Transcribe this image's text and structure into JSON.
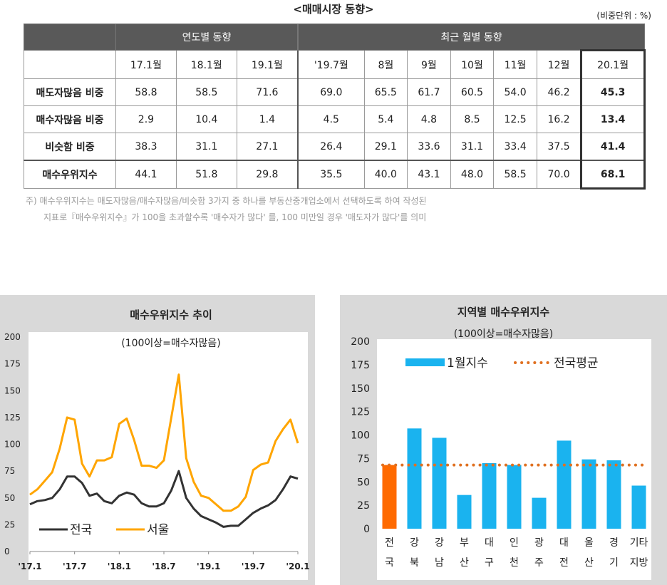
{
  "title": "<매매시장 동향>",
  "unit": "(비중단위 : %)",
  "table": {
    "group_headers": [
      "연도별 동향",
      "최근 월별 동향"
    ],
    "columns": [
      "17.1월",
      "18.1월",
      "19.1월",
      "'19.7월",
      "8월",
      "9월",
      "10월",
      "11월",
      "12월",
      "20.1월"
    ],
    "rows": [
      {
        "label": "매도자많음 비중",
        "values": [
          "58.8",
          "58.5",
          "71.6",
          "69.0",
          "65.5",
          "61.7",
          "60.5",
          "54.0",
          "46.2",
          "45.3"
        ]
      },
      {
        "label": "매수자많음 비중",
        "values": [
          "2.9",
          "10.4",
          "1.4",
          "4.5",
          "5.4",
          "4.8",
          "8.5",
          "12.5",
          "16.2",
          "13.4"
        ]
      },
      {
        "label": "비슷함 비중",
        "values": [
          "38.3",
          "31.1",
          "27.1",
          "26.4",
          "29.1",
          "33.6",
          "31.1",
          "33.4",
          "37.5",
          "41.4"
        ]
      },
      {
        "label": "매수우위지수",
        "values": [
          "44.1",
          "51.8",
          "29.8",
          "35.5",
          "40.0",
          "43.1",
          "48.0",
          "58.5",
          "70.0",
          "68.1"
        ]
      }
    ]
  },
  "note": {
    "line1": "주)  매수우위지수는 매도자많음/매수자많음/비슷함 3가지 중 하나를 부동산중개업소에서 선택하도록 하여 작성된",
    "line2": "지표로『매수우위지수』가 100을 초과할수록 '매수자가 많다' 를, 100 미만일 경우 '매도자가 많다'를 의미"
  },
  "chart_data": [
    {
      "type": "line",
      "title": "매수우위지수 추이",
      "subtitle": "(100이상=매수자많음)",
      "x_ticks": [
        "'17.1",
        "'17.7",
        "'18.1",
        "'18.7",
        "'19.1",
        "'19.7",
        "'20.1"
      ],
      "ylim": [
        0,
        200
      ],
      "y_ticks": [
        0,
        25,
        50,
        75,
        100,
        125,
        150,
        175,
        200
      ],
      "grid": false,
      "legend": "bottom-left",
      "series": [
        {
          "name": "전국",
          "color": "#333333",
          "values": [
            44,
            47,
            48,
            50,
            58,
            70,
            70,
            64,
            52,
            54,
            47,
            45,
            52,
            55,
            53,
            45,
            42,
            42,
            45,
            57,
            75,
            50,
            40,
            33,
            30,
            27,
            23,
            24,
            24,
            30,
            36,
            40,
            43,
            48,
            58,
            70,
            68
          ]
        },
        {
          "name": "서울",
          "color": "#ffa500",
          "values": [
            53,
            58,
            66,
            74,
            96,
            125,
            123,
            82,
            70,
            85,
            85,
            88,
            119,
            124,
            104,
            80,
            80,
            78,
            85,
            125,
            165,
            87,
            65,
            52,
            50,
            44,
            38,
            38,
            42,
            51,
            76,
            81,
            83,
            103,
            114,
            123,
            101
          ]
        }
      ]
    },
    {
      "type": "bar",
      "title": "지역별 매수우위지수",
      "subtitle": "(100이상=매수자많음)",
      "categories": [
        [
          "전",
          "국"
        ],
        [
          "강",
          "북"
        ],
        [
          "강",
          "남"
        ],
        [
          "부",
          "산"
        ],
        [
          "대",
          "구"
        ],
        [
          "인",
          "천"
        ],
        [
          "광",
          "주"
        ],
        [
          "대",
          "전"
        ],
        [
          "울",
          "산"
        ],
        [
          "경",
          "기"
        ],
        [
          "기타",
          "지방"
        ]
      ],
      "values": [
        68,
        107,
        97,
        36,
        70,
        68,
        33,
        94,
        74,
        73,
        46
      ],
      "bar_colors": [
        "#ff6a00",
        "#1ab3ef",
        "#1ab3ef",
        "#1ab3ef",
        "#1ab3ef",
        "#1ab3ef",
        "#1ab3ef",
        "#1ab3ef",
        "#1ab3ef",
        "#1ab3ef",
        "#1ab3ef"
      ],
      "reference_line": {
        "name": "전국평균",
        "value": 68,
        "color": "#e07020"
      },
      "bar_series_name": "1월지수",
      "ylim": [
        0,
        200
      ],
      "y_ticks": [
        0,
        25,
        50,
        75,
        100,
        125,
        150,
        175,
        200
      ],
      "grid": false,
      "legend": "top"
    }
  ]
}
